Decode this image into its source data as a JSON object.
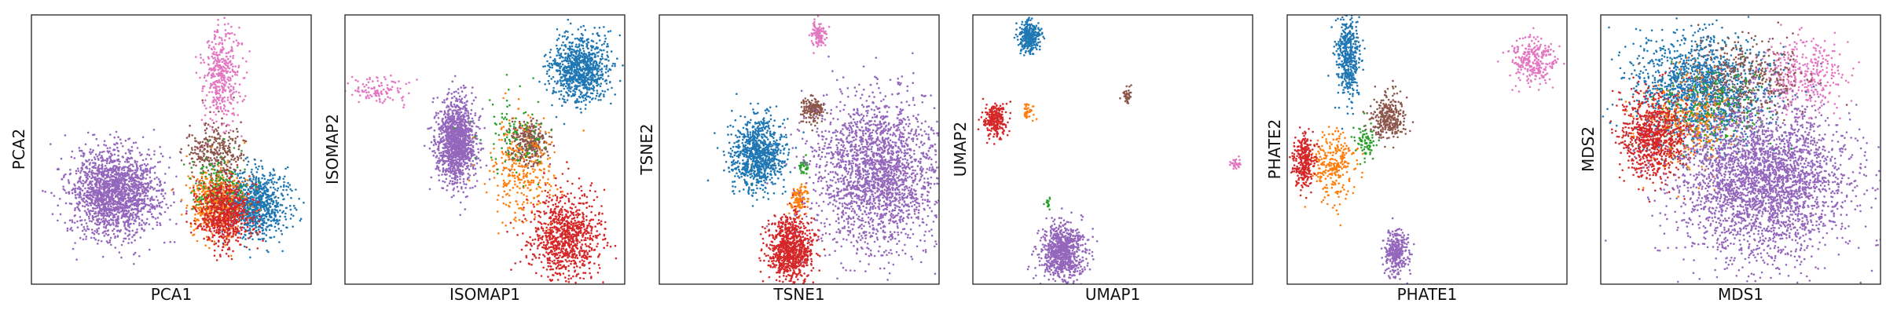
{
  "figure": {
    "colors": {
      "blue": "#1f77b4",
      "orange": "#ff7f0e",
      "green": "#2ca02c",
      "red": "#d62728",
      "purple": "#9467bd",
      "brown": "#8c564b",
      "pink": "#e377c2"
    }
  },
  "chart_data": [
    {
      "type": "scatter",
      "title": "",
      "xlabel": "PCA1",
      "ylabel": "PCA2",
      "ticks": "none",
      "clusters": [
        {
          "color": "purple",
          "center": [
            0.3,
            0.66
          ],
          "spread": [
            0.08,
            0.08
          ],
          "count": 1800
        },
        {
          "color": "pink",
          "center": [
            0.68,
            0.22
          ],
          "spread": [
            0.035,
            0.09
          ],
          "count": 420
        },
        {
          "color": "brown",
          "center": [
            0.66,
            0.52
          ],
          "spread": [
            0.05,
            0.06
          ],
          "count": 320
        },
        {
          "color": "blue",
          "center": [
            0.8,
            0.7
          ],
          "spread": [
            0.06,
            0.06
          ],
          "count": 900
        },
        {
          "color": "orange",
          "center": [
            0.66,
            0.7
          ],
          "spread": [
            0.05,
            0.06
          ],
          "count": 450
        },
        {
          "color": "green",
          "center": [
            0.67,
            0.63
          ],
          "spread": [
            0.05,
            0.06
          ],
          "count": 150
        },
        {
          "color": "red",
          "center": [
            0.69,
            0.74
          ],
          "spread": [
            0.05,
            0.06
          ],
          "count": 650
        }
      ]
    },
    {
      "type": "scatter",
      "title": "",
      "xlabel": "ISOMAP1",
      "ylabel": "ISOMAP2",
      "ticks": "none",
      "clusters": [
        {
          "color": "pink",
          "center": [
            0.12,
            0.28
          ],
          "spread": [
            0.05,
            0.025
          ],
          "count": 110
        },
        {
          "color": "purple",
          "center": [
            0.4,
            0.47
          ],
          "spread": [
            0.035,
            0.08
          ],
          "count": 1300
        },
        {
          "color": "blue",
          "center": [
            0.84,
            0.2
          ],
          "spread": [
            0.05,
            0.06
          ],
          "count": 900
        },
        {
          "color": "brown",
          "center": [
            0.66,
            0.48
          ],
          "spread": [
            0.035,
            0.04
          ],
          "count": 300
        },
        {
          "color": "orange",
          "center": [
            0.63,
            0.57
          ],
          "spread": [
            0.06,
            0.09
          ],
          "count": 300
        },
        {
          "color": "green",
          "center": [
            0.6,
            0.45
          ],
          "spread": [
            0.06,
            0.08
          ],
          "count": 100
        },
        {
          "color": "red",
          "center": [
            0.79,
            0.82
          ],
          "spread": [
            0.06,
            0.08
          ],
          "count": 900
        }
      ]
    },
    {
      "type": "scatter",
      "title": "",
      "xlabel": "TSNE1",
      "ylabel": "TSNE2",
      "ticks": "none",
      "clusters": [
        {
          "color": "pink",
          "center": [
            0.57,
            0.07
          ],
          "spread": [
            0.012,
            0.02
          ],
          "count": 120
        },
        {
          "color": "brown",
          "center": [
            0.55,
            0.35
          ],
          "spread": [
            0.018,
            0.025
          ],
          "count": 160
        },
        {
          "color": "blue",
          "center": [
            0.35,
            0.52
          ],
          "spread": [
            0.045,
            0.065
          ],
          "count": 900
        },
        {
          "color": "green",
          "center": [
            0.52,
            0.56
          ],
          "spread": [
            0.01,
            0.015
          ],
          "count": 40
        },
        {
          "color": "orange",
          "center": [
            0.5,
            0.68
          ],
          "spread": [
            0.015,
            0.025
          ],
          "count": 110
        },
        {
          "color": "red",
          "center": [
            0.47,
            0.87
          ],
          "spread": [
            0.04,
            0.06
          ],
          "count": 900
        },
        {
          "color": "purple",
          "center": [
            0.78,
            0.59
          ],
          "spread": [
            0.11,
            0.14
          ],
          "count": 2200
        }
      ]
    },
    {
      "type": "scatter",
      "title": "",
      "xlabel": "UMAP1",
      "ylabel": "UMAP2",
      "ticks": "none",
      "clusters": [
        {
          "color": "blue",
          "center": [
            0.2,
            0.08
          ],
          "spread": [
            0.02,
            0.03
          ],
          "count": 300
        },
        {
          "color": "red",
          "center": [
            0.08,
            0.39
          ],
          "spread": [
            0.02,
            0.03
          ],
          "count": 260
        },
        {
          "color": "orange",
          "center": [
            0.2,
            0.36
          ],
          "spread": [
            0.01,
            0.015
          ],
          "count": 40
        },
        {
          "color": "brown",
          "center": [
            0.55,
            0.3
          ],
          "spread": [
            0.01,
            0.015
          ],
          "count": 40
        },
        {
          "color": "pink",
          "center": [
            0.94,
            0.55
          ],
          "spread": [
            0.01,
            0.01
          ],
          "count": 30
        },
        {
          "color": "green",
          "center": [
            0.27,
            0.7
          ],
          "spread": [
            0.005,
            0.01
          ],
          "count": 15
        },
        {
          "color": "purple",
          "center": [
            0.32,
            0.88
          ],
          "spread": [
            0.04,
            0.05
          ],
          "count": 800
        }
      ]
    },
    {
      "type": "scatter",
      "title": "",
      "xlabel": "PHATE1",
      "ylabel": "PHATE2",
      "ticks": "none",
      "clusters": [
        {
          "color": "blue",
          "center": [
            0.22,
            0.16
          ],
          "spread": [
            0.02,
            0.08
          ],
          "count": 450
        },
        {
          "color": "pink",
          "center": [
            0.88,
            0.17
          ],
          "spread": [
            0.04,
            0.04
          ],
          "count": 280
        },
        {
          "color": "brown",
          "center": [
            0.36,
            0.38
          ],
          "spread": [
            0.03,
            0.04
          ],
          "count": 300
        },
        {
          "color": "green",
          "center": [
            0.28,
            0.47
          ],
          "spread": [
            0.02,
            0.03
          ],
          "count": 80
        },
        {
          "color": "orange",
          "center": [
            0.17,
            0.55
          ],
          "spread": [
            0.04,
            0.06
          ],
          "count": 280
        },
        {
          "color": "red",
          "center": [
            0.06,
            0.54
          ],
          "spread": [
            0.02,
            0.05
          ],
          "count": 300
        },
        {
          "color": "purple",
          "center": [
            0.39,
            0.88
          ],
          "spread": [
            0.02,
            0.04
          ],
          "count": 320
        }
      ]
    },
    {
      "type": "scatter",
      "title": "",
      "xlabel": "MDS1",
      "ylabel": "MDS2",
      "ticks": "none",
      "clusters": [
        {
          "color": "pink",
          "center": [
            0.72,
            0.22
          ],
          "spread": [
            0.07,
            0.07
          ],
          "count": 350
        },
        {
          "color": "blue",
          "center": [
            0.36,
            0.28
          ],
          "spread": [
            0.12,
            0.1
          ],
          "count": 1500
        },
        {
          "color": "brown",
          "center": [
            0.52,
            0.24
          ],
          "spread": [
            0.1,
            0.08
          ],
          "count": 400
        },
        {
          "color": "orange",
          "center": [
            0.3,
            0.4
          ],
          "spread": [
            0.08,
            0.08
          ],
          "count": 350
        },
        {
          "color": "green",
          "center": [
            0.4,
            0.35
          ],
          "spread": [
            0.1,
            0.08
          ],
          "count": 200
        },
        {
          "color": "red",
          "center": [
            0.19,
            0.45
          ],
          "spread": [
            0.06,
            0.08
          ],
          "count": 800
        },
        {
          "color": "purple",
          "center": [
            0.58,
            0.62
          ],
          "spread": [
            0.15,
            0.14
          ],
          "count": 3000
        }
      ]
    }
  ]
}
